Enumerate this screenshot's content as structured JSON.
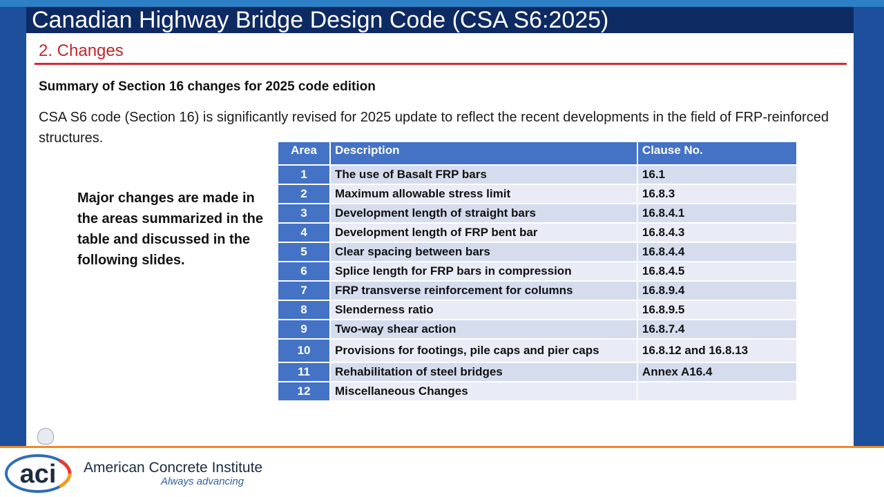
{
  "slide": {
    "title": "Canadian Highway Bridge Design Code (CSA S6:2025)",
    "subtitle": "2. Changes",
    "heading": "Summary of Section 16 changes for 2025 code edition",
    "intro": "CSA S6 code (Section 16) is significantly revised for 2025 update to reflect the recent developments in the field of FRP-reinforced structures.",
    "sidenote": "Major changes are made in the areas summarized in the table and discussed in the following slides."
  },
  "table": {
    "headers": {
      "area": "Area",
      "description": "Description",
      "clause": "Clause No."
    },
    "rows": [
      {
        "area": "1",
        "description": "The use of Basalt FRP bars",
        "clause": "16.1"
      },
      {
        "area": "2",
        "description": "Maximum allowable stress limit",
        "clause": "16.8.3"
      },
      {
        "area": "3",
        "description": "Development length of straight bars",
        "clause": "16.8.4.1"
      },
      {
        "area": "4",
        "description": "Development length of FRP bent bar",
        "clause": "16.8.4.3"
      },
      {
        "area": "5",
        "description": "Clear spacing between bars",
        "clause": "16.8.4.4"
      },
      {
        "area": "6",
        "description": "Splice length for FRP bars in compression",
        "clause": "16.8.4.5"
      },
      {
        "area": "7",
        "description": "FRP transverse reinforcement for columns",
        "clause": "16.8.9.4"
      },
      {
        "area": "8",
        "description": "Slenderness ratio",
        "clause": "16.8.9.5"
      },
      {
        "area": "9",
        "description": "Two-way shear action",
        "clause": "16.8.7.4"
      },
      {
        "area": "10",
        "description": "Provisions for footings, pile caps and pier caps",
        "clause": "16.8.12 and 16.8.13"
      },
      {
        "area": "11",
        "description": "Rehabilitation of steel bridges",
        "clause": "Annex A16.4"
      },
      {
        "area": "12",
        "description": "Miscellaneous Changes",
        "clause": ""
      }
    ]
  },
  "footer": {
    "logo_text": "aci",
    "brand_name": "American Concrete Institute",
    "tagline": "Always advancing"
  },
  "colors": {
    "title_bar": "#0e2a63",
    "accent_red": "#d22a2f",
    "table_header": "#4472c4",
    "footer_line": "#f08a24"
  }
}
